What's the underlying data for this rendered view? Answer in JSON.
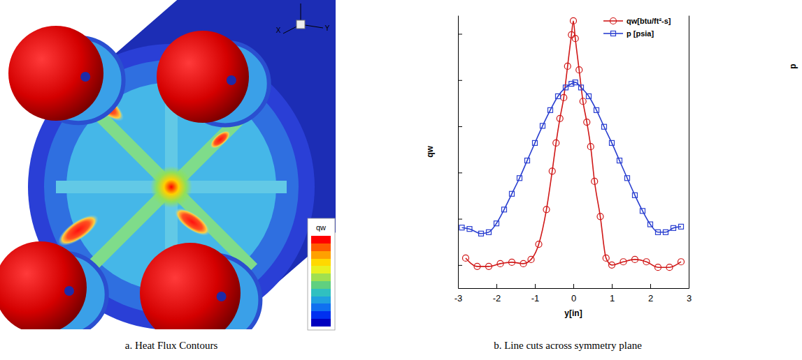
{
  "chart_data": {
    "type": "line",
    "title": "b. Line cuts across symmetry plane",
    "x_label": "y[in]",
    "y_label": "qw",
    "y2_label": "p",
    "xlim": [
      -3,
      3
    ],
    "xticks": [
      -3,
      -2,
      -1,
      0,
      1,
      2,
      3
    ],
    "ylim": [
      0,
      5.9
    ],
    "yticks": [
      0.5,
      1.5,
      2.5,
      3.5,
      4.5,
      5.5
    ],
    "y2lim": [
      0,
      5.9
    ],
    "y2ticks": [],
    "tick_labels": "x",
    "legend": "upper right",
    "grid": false,
    "series": [
      {
        "name": "qw[btu/ft²-s]",
        "color": "#d01818",
        "marker": "circle",
        "line_style": "solid",
        "x": [
          -2.8,
          -2.5,
          -2.2,
          -1.9,
          -1.6,
          -1.3,
          -1.1,
          -0.9,
          -0.7,
          -0.55,
          -0.45,
          -0.35,
          -0.25,
          -0.15,
          -0.05,
          0,
          0.05,
          0.15,
          0.25,
          0.35,
          0.45,
          0.55,
          0.7,
          0.85,
          1.0,
          1.3,
          1.6,
          1.9,
          2.2,
          2.5,
          2.8
        ],
        "values": [
          0.65,
          0.47,
          0.47,
          0.53,
          0.56,
          0.53,
          0.62,
          0.95,
          1.7,
          2.53,
          3.14,
          3.67,
          4.12,
          4.8,
          5.48,
          5.78,
          5.4,
          4.72,
          4.04,
          3.59,
          3.06,
          2.31,
          1.55,
          0.65,
          0.5,
          0.57,
          0.62,
          0.57,
          0.45,
          0.45,
          0.57
        ]
      },
      {
        "name": "p [psia]",
        "color": "#2a3fd0",
        "marker": "square",
        "line_style": "solid",
        "axis": "y2",
        "x": [
          -2.9,
          -2.7,
          -2.4,
          -2.2,
          -2.0,
          -1.8,
          -1.6,
          -1.4,
          -1.2,
          -1.0,
          -0.8,
          -0.6,
          -0.4,
          -0.2,
          -0.05,
          0.05,
          0.2,
          0.4,
          0.6,
          0.8,
          1.0,
          1.2,
          1.4,
          1.6,
          1.8,
          2.0,
          2.2,
          2.4,
          2.6,
          2.8
        ],
        "values": [
          1.31,
          1.28,
          1.18,
          1.21,
          1.4,
          1.7,
          2.04,
          2.38,
          2.76,
          3.14,
          3.51,
          3.85,
          4.15,
          4.34,
          4.42,
          4.45,
          4.34,
          4.15,
          3.85,
          3.49,
          3.14,
          2.76,
          2.38,
          2.01,
          1.67,
          1.38,
          1.21,
          1.21,
          1.3,
          1.33
        ]
      }
    ]
  },
  "figure_a": {
    "caption": "a. Heat Flux Contours",
    "colorbar_label": "qw",
    "triad_labels": [
      "X",
      "Y"
    ]
  }
}
